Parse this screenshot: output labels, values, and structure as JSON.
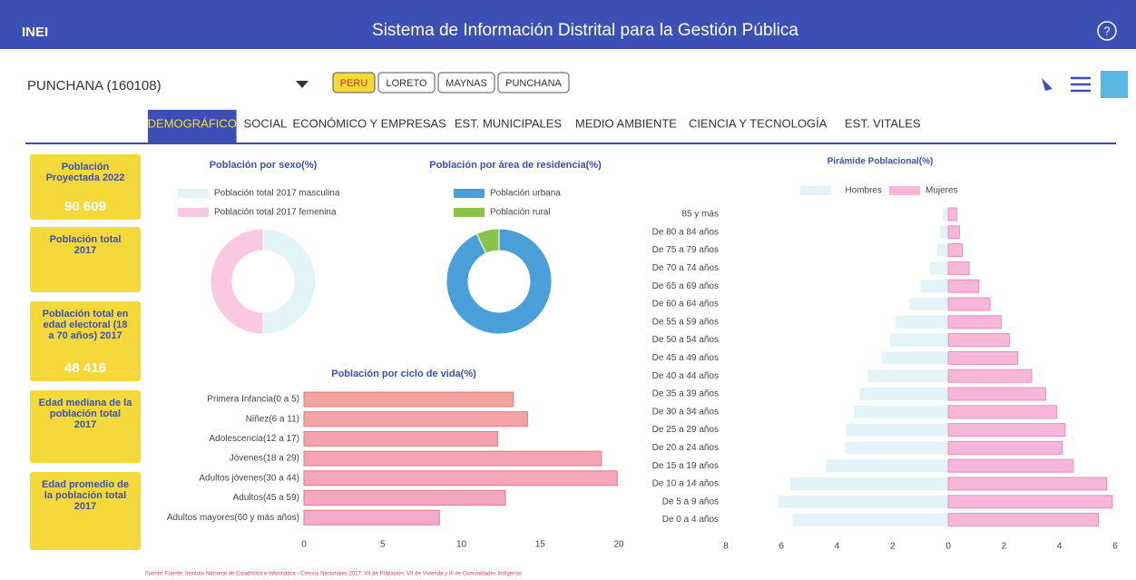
{
  "header": {
    "logo": "INEI",
    "title": "Sistema de Información Distrital para la Gestión Pública",
    "help": "?"
  },
  "location": {
    "name": "PUNCHANA (160108)",
    "breadcrumbs": [
      "PERU",
      "LORETO",
      "MAYNAS",
      "PUNCHANA"
    ]
  },
  "tabs": [
    "DEMOGRÁFICO",
    "SOCIAL",
    "ECONÓMICO Y EMPRESAS",
    "EST. MUNICIPALES",
    "MEDIO AMBIENTE",
    "CIENCIA Y TECNOLOGÍA",
    "EST. VITALES"
  ],
  "cards": [
    {
      "label": "Población Proyectada 2022",
      "value": "90 609"
    },
    {
      "label": "Población total 2017"
    },
    {
      "label": "Población total en edad electoral (18 a 70 años) 2017",
      "value": "48 416"
    },
    {
      "label": "Edad mediana de la población total 2017"
    },
    {
      "label": "Edad promedio de la población total 2017"
    }
  ],
  "chart_data": [
    {
      "type": "pie",
      "title": "Población por sexo(%)",
      "labels": [
        "Población total 2017 masculina",
        "Población total 2017 femenina"
      ],
      "values": [
        50,
        50
      ],
      "colors": [
        "#e3f4f9",
        "#f9c9e3"
      ]
    },
    {
      "type": "pie",
      "title": "Población por área de residencia(%)",
      "labels": [
        "Población urbana",
        "Población rural"
      ],
      "values": [
        93,
        7
      ],
      "colors": [
        "#4a9fd8",
        "#8bc34a"
      ]
    },
    {
      "type": "bar",
      "title": "Población por ciclo de vida(%)",
      "categories": [
        "Primera Infancia(0 a 5)",
        "Niñez(6 a 11)",
        "Adolescencia(12 a 17)",
        "Jóvenes(18 a 29)",
        "Adultos jóvenes(30 a 44)",
        "Adultos(45 a 59)",
        "Adultos mayores(60 y más años)"
      ],
      "values": [
        13.3,
        14.2,
        12.3,
        18.9,
        19.9,
        12.8,
        8.6
      ],
      "colors": [
        "#f4a29e",
        "#f4a3a6",
        "#f4a3ac",
        "#f4a4b2",
        "#f4a6ba",
        "#f4a8c2",
        "#f4accc"
      ],
      "xlim": [
        0,
        20
      ],
      "xticks": [
        0,
        5,
        10,
        15,
        20
      ]
    },
    {
      "type": "pyramid",
      "title": "Pirámide Poblacional(%)",
      "categories": [
        "85 y más",
        "De 80 a 84 años",
        "De 75 a 79 años",
        "De 70 a 74 años",
        "De 65 a 69 años",
        "De 60 a 64 años",
        "De 55 a 59 años",
        "De 50 a 54 años",
        "De 45 a 49 años",
        "De 40 a 44 años",
        "De 35 a 39 años",
        "De 30 a 34 años",
        "De 25 a 29 años",
        "De 20 a 24 años",
        "De 15 a 19 años",
        "De 10 a 14 años",
        "De 5 a 9 años",
        "De 0 a 4 años"
      ],
      "series": [
        {
          "name": "Hombres",
          "color": "#e3f4f9",
          "values": [
            0.2,
            0.3,
            0.4,
            0.65,
            1.0,
            1.4,
            1.9,
            2.1,
            2.4,
            2.9,
            3.2,
            3.4,
            3.7,
            3.7,
            4.4,
            5.7,
            6.1,
            5.6
          ]
        },
        {
          "name": "Mujeres",
          "color": "#f7b6da",
          "values": [
            0.3,
            0.4,
            0.5,
            0.75,
            1.1,
            1.5,
            1.9,
            2.2,
            2.5,
            3.0,
            3.5,
            3.9,
            4.2,
            4.1,
            4.5,
            5.7,
            5.9,
            5.4
          ]
        }
      ],
      "xlim": [
        -8,
        6
      ],
      "xticks": [
        {
          "value": -8,
          "label": "8"
        },
        {
          "value": -6,
          "label": "6"
        },
        {
          "value": -4,
          "label": "4"
        },
        {
          "value": -2,
          "label": "2"
        },
        0,
        2,
        4,
        6
      ]
    }
  ],
  "footer": "Fuente: Fuente: Instituto Nacional de Estadística e Informática - Censos Nacionales 2017: XII de Población, VII de Vivienda y III de Comunidades Indígenas"
}
